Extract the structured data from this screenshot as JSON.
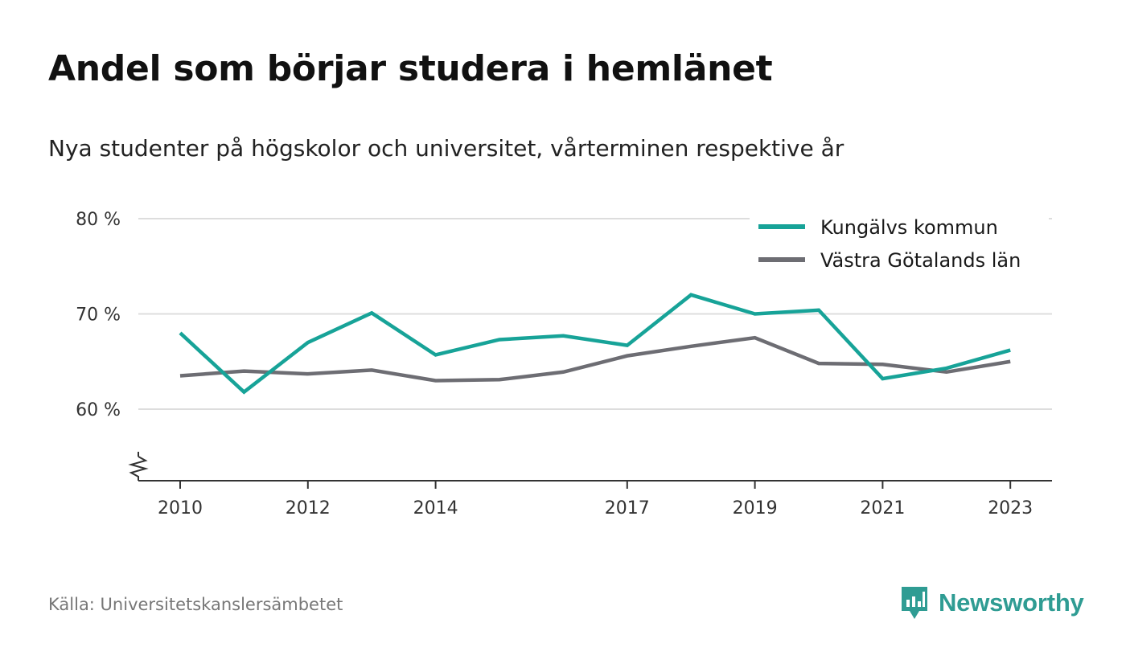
{
  "header": {
    "title": "Andel som börjar studera i hemlänet",
    "subtitle": "Nya studenter på högskolor och universitet, vårterminen respektive år"
  },
  "footer": {
    "source": "Källa: Universitetskanslersämbetet",
    "brand": "Newsworthy",
    "brand_icon": "bar-chart-speech-bubble-icon"
  },
  "colors": {
    "kungalv": "#17a398",
    "vg": "#6d6d73",
    "grid": "#dddddd",
    "axis": "#333333",
    "brand": "#2f9c93"
  },
  "chart_data": {
    "type": "line",
    "x": [
      2010,
      2011,
      2012,
      2013,
      2014,
      2015,
      2016,
      2017,
      2018,
      2019,
      2020,
      2021,
      2022,
      2023
    ],
    "x_tick_labels": [
      "2010",
      "2012",
      "2014",
      "2017",
      "2019",
      "2021",
      "2023"
    ],
    "y_tick_labels": [
      "60 %",
      "70 %",
      "80 %"
    ],
    "y_ticks": [
      60,
      70,
      80
    ],
    "ylim": [
      52.5,
      80
    ],
    "axis_break": true,
    "grid": true,
    "legend_position": "top-right",
    "series": [
      {
        "name": "Kungälvs kommun",
        "color": "#17a398",
        "values": [
          68.0,
          61.8,
          67.0,
          70.1,
          65.7,
          67.3,
          67.7,
          66.7,
          72.0,
          70.0,
          70.4,
          63.2,
          64.3,
          66.2
        ]
      },
      {
        "name": "Västra Götalands län",
        "color": "#6d6d73",
        "values": [
          63.5,
          64.0,
          63.7,
          64.1,
          63.0,
          63.1,
          63.9,
          65.6,
          66.6,
          67.5,
          64.8,
          64.7,
          63.9,
          65.0
        ]
      }
    ]
  }
}
